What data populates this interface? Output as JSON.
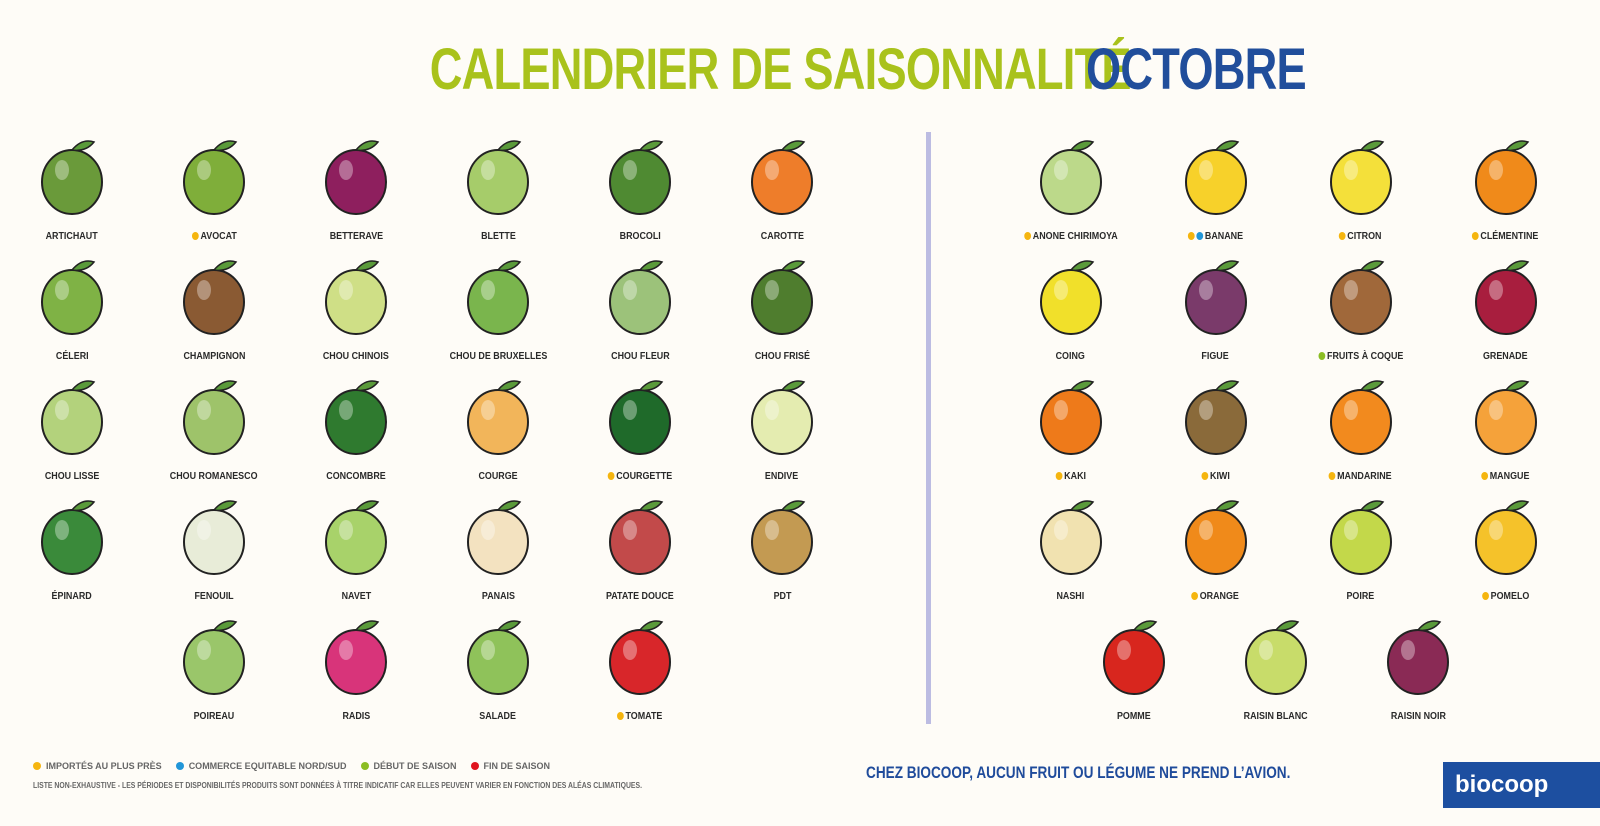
{
  "title": {
    "part1": "CALENDRIER DE SAISONNALITÉ",
    "part2": "OCTOBRE"
  },
  "colors": {
    "green": "#a9c21c",
    "blue": "#214e9b",
    "divider": "#bcbce2"
  },
  "legend": [
    {
      "type": "import",
      "label": "IMPORTÉS AU PLUS PRÈS",
      "color": "#f5b50f"
    },
    {
      "type": "equitable",
      "label": "COMMERCE EQUITABLE NORD/SUD",
      "color": "#2196d8"
    },
    {
      "type": "debut",
      "label": "DÉBUT DE SAISON",
      "color": "#8bbd23"
    },
    {
      "type": "fin",
      "label": "FIN DE SAISON",
      "color": "#e0141e"
    }
  ],
  "disclaimer": "LISTE NON-EXHAUSTIVE - LES PÉRIODES ET DISPONIBILITÉS PRODUITS SONT DONNÉES À TITRE INDICATIF CAR ELLES PEUVENT VARIER EN FONCTION DES ALÉAS CLIMATIQUES.",
  "slogan": "CHEZ BIOCOOP, AUCUN FRUIT OU LÉGUME NE PREND L’AVION.",
  "logo": "biocoop",
  "vegetables": [
    {
      "label": "ARTICHAUT",
      "dots": [],
      "color": "#6a9a3a"
    },
    {
      "label": "AVOCAT",
      "dots": [
        "import"
      ],
      "color": "#7fae3a"
    },
    {
      "label": "BETTERAVE",
      "dots": [],
      "color": "#8e1f5e"
    },
    {
      "label": "BLETTE",
      "dots": [],
      "color": "#a6cc6a"
    },
    {
      "label": "BROCOLI",
      "dots": [],
      "color": "#4f8a32"
    },
    {
      "label": "CAROTTE",
      "dots": [],
      "color": "#ee7d2a"
    },
    {
      "label": "CÉLERI",
      "dots": [],
      "color": "#7fb245"
    },
    {
      "label": "CHAMPIGNON",
      "dots": [],
      "color": "#8a5a33"
    },
    {
      "label": "CHOU CHINOIS",
      "dots": [],
      "color": "#cfdf86"
    },
    {
      "label": "CHOU DE BRUXELLES",
      "dots": [],
      "color": "#7ab54d"
    },
    {
      "label": "CHOU FLEUR",
      "dots": [],
      "color": "#9cc27a"
    },
    {
      "label": "CHOU FRISÉ",
      "dots": [],
      "color": "#4f7d2e"
    },
    {
      "label": "CHOU LISSE",
      "dots": [],
      "color": "#b3d27c"
    },
    {
      "label": "CHOU ROMANESCO",
      "dots": [],
      "color": "#9ec36a"
    },
    {
      "label": "CONCOMBRE",
      "dots": [],
      "color": "#2f7a2f"
    },
    {
      "label": "COURGE",
      "dots": [],
      "color": "#f2b55a"
    },
    {
      "label": "COURGETTE",
      "dots": [
        "import"
      ],
      "color": "#1f6a2a"
    },
    {
      "label": "ENDIVE",
      "dots": [],
      "color": "#e4ecb0"
    },
    {
      "label": "ÉPINARD",
      "dots": [],
      "color": "#3a8a3a"
    },
    {
      "label": "FENOUIL",
      "dots": [],
      "color": "#e8ecd8"
    },
    {
      "label": "NAVET",
      "dots": [],
      "color": "#a8d26a"
    },
    {
      "label": "PANAIS",
      "dots": [],
      "color": "#f3e2c0"
    },
    {
      "label": "PATATE DOUCE",
      "dots": [],
      "color": "#c24a4a"
    },
    {
      "label": "PDT",
      "dots": [],
      "color": "#c39a52"
    },
    {
      "label": "POIREAU",
      "dots": [],
      "color": "#9ac66a"
    },
    {
      "label": "RADIS",
      "dots": [],
      "color": "#d8347a"
    },
    {
      "label": "SALADE",
      "dots": [],
      "color": "#8fc25a"
    },
    {
      "label": "TOMATE",
      "dots": [
        "import"
      ],
      "color": "#d8262a"
    }
  ],
  "fruits": [
    {
      "label": "ANONE CHIRIMOYA",
      "dots": [
        "import"
      ],
      "color": "#bcd98a"
    },
    {
      "label": "BANANE",
      "dots": [
        "import",
        "equitable"
      ],
      "color": "#f7d12a"
    },
    {
      "label": "CITRON",
      "dots": [
        "import"
      ],
      "color": "#f4e03a"
    },
    {
      "label": "CLÉMENTINE",
      "dots": [
        "import"
      ],
      "color": "#f08a1a"
    },
    {
      "label": "COING",
      "dots": [],
      "color": "#f1e02a"
    },
    {
      "label": "FIGUE",
      "dots": [],
      "color": "#7a3a6a"
    },
    {
      "label": "FRUITS À COQUE",
      "dots": [
        "debut"
      ],
      "color": "#a0683a"
    },
    {
      "label": "GRENADE",
      "dots": [],
      "color": "#a81e3e"
    },
    {
      "label": "KAKI",
      "dots": [
        "import"
      ],
      "color": "#ee7a1a"
    },
    {
      "label": "KIWI",
      "dots": [
        "import"
      ],
      "color": "#8a6a3a"
    },
    {
      "label": "MANDARINE",
      "dots": [
        "import"
      ],
      "color": "#f28a1e"
    },
    {
      "label": "MANGUE",
      "dots": [
        "import"
      ],
      "color": "#f5a23a"
    },
    {
      "label": "NASHI",
      "dots": [],
      "color": "#f1e2b0"
    },
    {
      "label": "ORANGE",
      "dots": [
        "import"
      ],
      "color": "#f08a1a"
    },
    {
      "label": "POIRE",
      "dots": [],
      "color": "#c3d84a"
    },
    {
      "label": "POMELO",
      "dots": [
        "import"
      ],
      "color": "#f5c22a"
    }
  ],
  "fruits_last_row": [
    {
      "label": "POMME",
      "dots": [],
      "color": "#d8261e"
    },
    {
      "label": "RAISIN BLANC",
      "dots": [],
      "color": "#c8dc6a"
    },
    {
      "label": "RAISIN NOIR",
      "dots": [],
      "color": "#8a2a55"
    }
  ]
}
